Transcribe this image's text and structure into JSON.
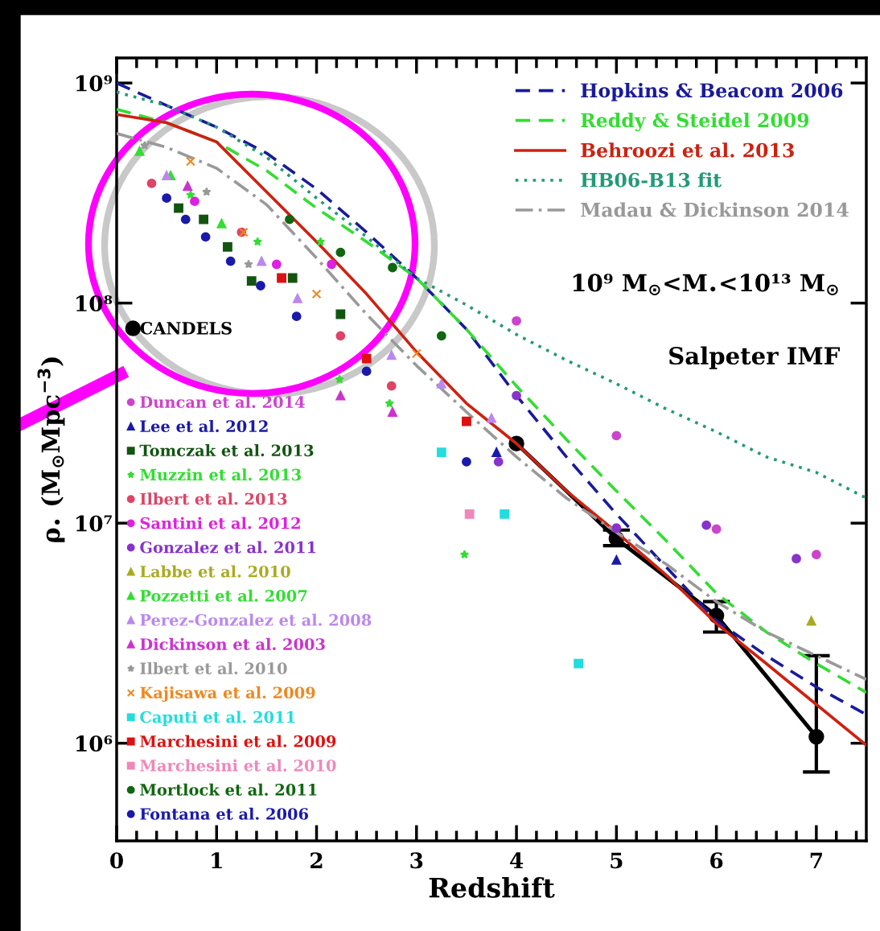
{
  "chart_data": {
    "type": "scatter",
    "xlabel": "Redshift",
    "ylabel": "ρ$_{•}$ (M$_{⊙}$Mpc$^{−3}$)",
    "annotations": [
      "10⁹ M$_{⊙}$<M$_{•}$<10¹³ M$_{⊙}$",
      "Salpeter IMF"
    ],
    "log": "y",
    "xlim": [
      0,
      7.5
    ],
    "ylim": [
      360000,
      1300000000
    ],
    "xticks": [
      0,
      1,
      2,
      3,
      4,
      5,
      6,
      7
    ],
    "yticks": [
      {
        "value": 1000000,
        "label": "10⁶"
      },
      {
        "value": 10000000,
        "label": "10⁷"
      },
      {
        "value": 100000000,
        "label": "10⁸"
      },
      {
        "value": 1000000000,
        "label": "10⁹"
      }
    ],
    "legend": "bottom left",
    "series": [
      {
        "name": "Hopkins & Beacom 2006",
        "type": "line",
        "line_style": "dashed",
        "color": "#1a1a99",
        "x": [
          0,
          0.5,
          1,
          1.5,
          2,
          2.5,
          3,
          3.5,
          4,
          4.5,
          5,
          5.5,
          6,
          6.5,
          7,
          7.5
        ],
        "values": [
          1000000000.0,
          790000000.0,
          630000000.0,
          480000000.0,
          330000000.0,
          210000000.0,
          130000000.0,
          76000000.0,
          38000000.0,
          20000000.0,
          11000000.0,
          6300000.0,
          3600000.0,
          2500000.0,
          1800000.0,
          1350000.0
        ]
      },
      {
        "name": "Reddy & Steidel 2009",
        "type": "line",
        "line_style": "dashed",
        "color": "#33dd33",
        "x": [
          0,
          0.5,
          1,
          1.5,
          2,
          2.5,
          3,
          3.5,
          4,
          4.5,
          5,
          5.5,
          6,
          6.5,
          7,
          7.5
        ],
        "values": [
          760000000.0,
          660000000.0,
          540000000.0,
          400000000.0,
          270000000.0,
          190000000.0,
          130000000.0,
          76000000.0,
          42000000.0,
          24000000.0,
          14000000.0,
          8300000.0,
          4800000.0,
          3200000.0,
          2300000.0,
          1700000.0
        ]
      },
      {
        "name": "Behroozi et al. 2013",
        "type": "line",
        "line_style": "solid",
        "color": "#cc2211",
        "x": [
          0,
          0.5,
          1,
          1.5,
          2,
          2.5,
          3,
          3.5,
          4,
          4.5,
          5,
          5.5,
          6,
          6.5,
          7,
          7.5
        ],
        "values": [
          720000000.0,
          660000000.0,
          540000000.0,
          320000000.0,
          190000000.0,
          110000000.0,
          60000000.0,
          35000000.0,
          23000000.0,
          14000000.0,
          9100000.0,
          5800000.0,
          3500000.0,
          2300000.0,
          1500000.0,
          980000.0
        ]
      },
      {
        "name": "HB06-B13 fit",
        "type": "line",
        "line_style": "dotted",
        "color": "#229977",
        "x": [
          0,
          0.5,
          1,
          1.5,
          2,
          2.5,
          3,
          3.5,
          4,
          4.5,
          5,
          5.5,
          6,
          6.5,
          7,
          7.5
        ],
        "values": [
          910000000.0,
          790000000.0,
          630000000.0,
          460000000.0,
          300000000.0,
          200000000.0,
          130000000.0,
          98000000.0,
          72000000.0,
          55000000.0,
          43000000.0,
          33000000.0,
          26000000.0,
          20000000.0,
          17000000.0,
          13000000.0
        ]
      },
      {
        "name": "Madau & Dickinson 2014",
        "type": "line",
        "line_style": "dashdot",
        "color": "#999999",
        "x": [
          0,
          0.5,
          1,
          1.5,
          2,
          2.5,
          3,
          3.5,
          4,
          4.5,
          5,
          5.5,
          6,
          6.5,
          7,
          7.5
        ],
        "values": [
          590000000.0,
          510000000.0,
          410000000.0,
          280000000.0,
          160000000.0,
          89000000.0,
          52000000.0,
          32000000.0,
          20000000.0,
          13000000.0,
          9100000.0,
          6500000.0,
          4400000.0,
          3200000.0,
          2500000.0,
          1950000.0
        ]
      },
      {
        "name": "CANDELS",
        "type": "line",
        "line_style": "solid",
        "marker": "circle",
        "color": "#000000",
        "x": [
          4,
          5,
          6,
          7
        ],
        "values": [
          23000000.0,
          8500000.0,
          3800000.0,
          1070000.0
        ],
        "errors": [
          null,
          [
            7900000.0,
            9300000.0
          ],
          [
            3200000.0,
            4400000.0
          ],
          [
            740000.0,
            2500000.0
          ]
        ]
      },
      {
        "name": "Duncan et al. 2014",
        "marker": "circle",
        "color": "#cc44cc",
        "x": [
          4.0,
          5.0,
          6.0,
          7.0
        ],
        "values": [
          83000000.0,
          25000000.0,
          9400000.0,
          7200000.0
        ]
      },
      {
        "name": "Lee et al. 2012",
        "marker": "triangle",
        "color": "#1a1aaa",
        "x": [
          3.8,
          5.0
        ],
        "values": [
          21000000.0,
          6800000.0
        ]
      },
      {
        "name": "Tomczak et al. 2013",
        "marker": "square",
        "color": "#115511",
        "x": [
          0.62,
          0.87,
          1.11,
          1.35,
          1.76,
          2.24
        ],
        "values": [
          270000000.0,
          240000000.0,
          180000000.0,
          126000000.0,
          130000000.0,
          89000000.0
        ]
      },
      {
        "name": "Muzzin et al. 2013",
        "marker": "star",
        "color": "#33dd33",
        "x": [
          0.74,
          1.41,
          2.04,
          2.23,
          2.73,
          3.48
        ],
        "values": [
          310000000.0,
          190000000.0,
          190000000.0,
          45000000.0,
          35000000.0,
          7200000.0
        ]
      },
      {
        "name": "Ilbert et al. 2013",
        "marker": "circle",
        "color": "#dd4466",
        "x": [
          0.35,
          1.25,
          2.24,
          2.75
        ],
        "values": [
          350000000.0,
          210000000.0,
          71000000.0,
          42000000.0
        ]
      },
      {
        "name": "Santini et al. 2012",
        "marker": "circle",
        "color": "#dd22dd",
        "x": [
          0.78,
          1.6,
          2.15
        ],
        "values": [
          290000000.0,
          150000000.0,
          150000000.0
        ]
      },
      {
        "name": "Gonzalez et al. 2011",
        "marker": "circle",
        "color": "#8833cc",
        "x": [
          3.82,
          4.0,
          5.0,
          5.9,
          6.8
        ],
        "values": [
          19000000.0,
          38000000.0,
          9500000.0,
          9800000.0,
          6900000.0
        ]
      },
      {
        "name": "Labbe et al. 2010",
        "marker": "triangle",
        "color": "#aaaa22",
        "x": [
          6.95
        ],
        "values": [
          3600000.0
        ]
      },
      {
        "name": "Pozzetti et al. 2007",
        "marker": "triangle",
        "color": "#33dd33",
        "x": [
          0.23,
          0.54,
          1.05
        ],
        "values": [
          490000000.0,
          380000000.0,
          230000000.0
        ]
      },
      {
        "name": "Perez-Gonzalez et al. 2008",
        "marker": "triangle",
        "color": "#bb88ee",
        "x": [
          0.5,
          1.45,
          1.81,
          2.75,
          3.25,
          3.75
        ],
        "values": [
          380000000.0,
          155000000.0,
          105000000.0,
          58000000.0,
          43000000.0,
          30000000.0
        ]
      },
      {
        "name": "Dickinson et al. 2003",
        "marker": "triangle",
        "color": "#cc33cc",
        "x": [
          0.71,
          2.24,
          2.76
        ],
        "values": [
          340000000.0,
          38000000.0,
          32000000.0
        ]
      },
      {
        "name": "Ilbert et al. 2010",
        "marker": "star",
        "color": "#999999",
        "x": [
          0.28,
          0.9,
          1.32
        ],
        "values": [
          520000000.0,
          320000000.0,
          150000000.0
        ]
      },
      {
        "name": "Kajisawa et al. 2009",
        "marker": "cross",
        "color": "#ee8822",
        "x": [
          0.74,
          1.27,
          2.0,
          3.0
        ],
        "values": [
          440000000.0,
          210000000.0,
          110000000.0,
          59000000.0
        ]
      },
      {
        "name": "Caputi et al. 2011",
        "marker": "square",
        "color": "#22dddd",
        "x": [
          3.25,
          3.88,
          4.62
        ],
        "values": [
          21000000.0,
          11000000.0,
          2300000.0
        ]
      },
      {
        "name": "Marchesini et al. 2009",
        "marker": "square",
        "color": "#dd1111",
        "x": [
          1.65,
          2.5,
          3.5
        ],
        "values": [
          130000000.0,
          56000000.0,
          29000000.0
        ]
      },
      {
        "name": "Marchesini et al. 2010",
        "marker": "square",
        "color": "#ee88bb",
        "x": [
          3.53
        ],
        "values": [
          11000000.0
        ]
      },
      {
        "name": "Mortlock et al. 2011",
        "marker": "circle",
        "color": "#116611",
        "x": [
          1.73,
          2.24,
          2.76,
          3.25
        ],
        "values": [
          240000000.0,
          170000000.0,
          145000000.0,
          71000000.0
        ]
      },
      {
        "name": "Fontana et al. 2006",
        "marker": "circle",
        "color": "#1a1aaa",
        "x": [
          0.5,
          0.69,
          0.89,
          1.14,
          1.44,
          1.8,
          2.5,
          3.5
        ],
        "values": [
          300000000.0,
          240000000.0,
          200000000.0,
          155000000.0,
          120000000.0,
          87000000.0,
          49000000.0,
          19000000.0
        ]
      }
    ]
  }
}
